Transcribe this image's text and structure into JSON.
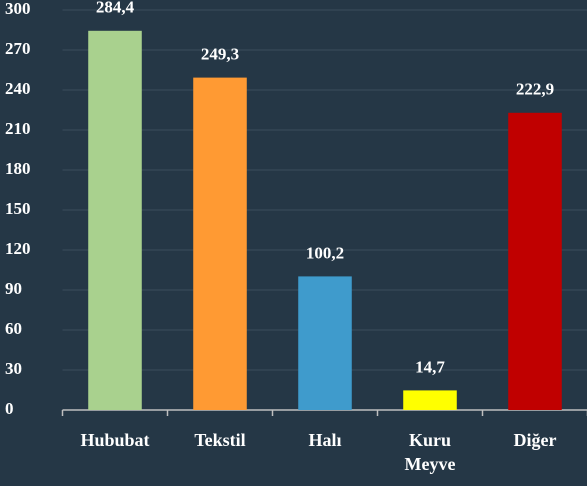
{
  "chart_data": {
    "type": "bar",
    "categories": [
      "Hububat",
      "Tekstil",
      "Halı",
      "Kuru Meyve",
      "Diğer"
    ],
    "values": [
      284.4,
      249.3,
      100.2,
      14.7,
      222.9
    ],
    "value_labels": [
      "284,4",
      "249,3",
      "100,2",
      "14,7",
      "222,9"
    ],
    "colors": [
      "#a9d18e",
      "#ff9a33",
      "#3f9bcc",
      "#ffff00",
      "#c00000"
    ],
    "ylim": [
      0,
      300
    ],
    "yticks": [
      0,
      30,
      60,
      90,
      120,
      150,
      180,
      210,
      240,
      270,
      300
    ],
    "grid": true
  }
}
